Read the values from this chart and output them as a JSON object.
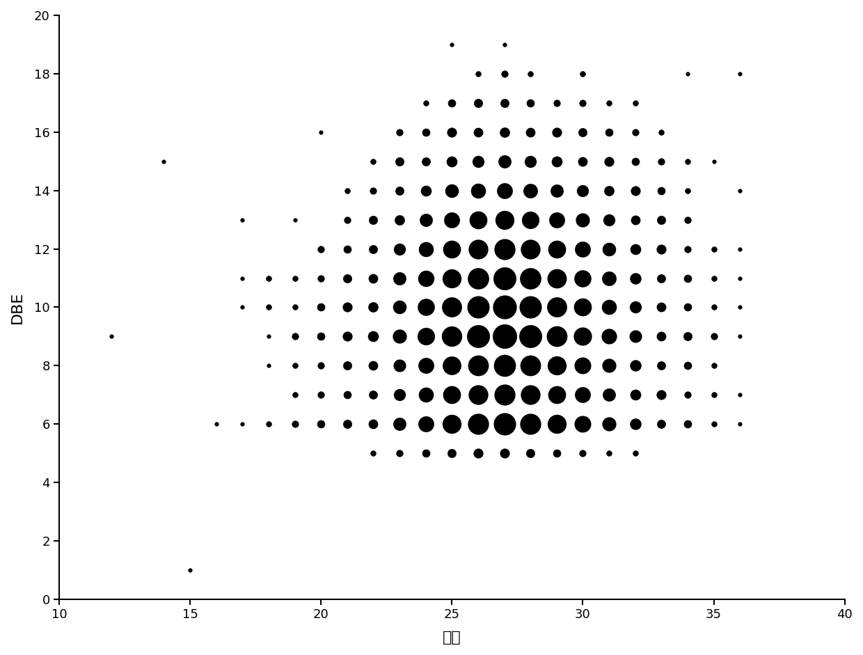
{
  "title": "",
  "xlabel": "碘数",
  "ylabel": "DBE",
  "xlim": [
    10,
    40
  ],
  "ylim": [
    0,
    20
  ],
  "xticks": [
    10,
    15,
    20,
    25,
    30,
    35,
    40
  ],
  "yticks": [
    0,
    2,
    4,
    6,
    8,
    10,
    12,
    14,
    16,
    18,
    20
  ],
  "background_color": "#ffffff",
  "points": [
    [
      12,
      9,
      1
    ],
    [
      14,
      15,
      1
    ],
    [
      15,
      1,
      1
    ],
    [
      16,
      6,
      1
    ],
    [
      17,
      6,
      1
    ],
    [
      17,
      10,
      1
    ],
    [
      17,
      11,
      1
    ],
    [
      17,
      13,
      1
    ],
    [
      18,
      6,
      2
    ],
    [
      18,
      8,
      1
    ],
    [
      18,
      9,
      1
    ],
    [
      18,
      10,
      2
    ],
    [
      18,
      11,
      2
    ],
    [
      19,
      6,
      3
    ],
    [
      19,
      7,
      2
    ],
    [
      19,
      8,
      2
    ],
    [
      19,
      9,
      3
    ],
    [
      19,
      10,
      2
    ],
    [
      19,
      11,
      2
    ],
    [
      19,
      13,
      1
    ],
    [
      20,
      6,
      4
    ],
    [
      20,
      7,
      3
    ],
    [
      20,
      8,
      3
    ],
    [
      20,
      9,
      4
    ],
    [
      20,
      10,
      4
    ],
    [
      20,
      11,
      3
    ],
    [
      20,
      12,
      3
    ],
    [
      20,
      16,
      1
    ],
    [
      21,
      6,
      5
    ],
    [
      21,
      7,
      4
    ],
    [
      21,
      8,
      5
    ],
    [
      21,
      9,
      6
    ],
    [
      21,
      10,
      6
    ],
    [
      21,
      11,
      5
    ],
    [
      21,
      12,
      4
    ],
    [
      21,
      13,
      3
    ],
    [
      21,
      14,
      2
    ],
    [
      22,
      5,
      2
    ],
    [
      22,
      6,
      8
    ],
    [
      22,
      7,
      7
    ],
    [
      22,
      8,
      8
    ],
    [
      22,
      9,
      10
    ],
    [
      22,
      10,
      9
    ],
    [
      22,
      11,
      8
    ],
    [
      22,
      12,
      7
    ],
    [
      22,
      13,
      5
    ],
    [
      22,
      14,
      3
    ],
    [
      22,
      15,
      2
    ],
    [
      23,
      5,
      3
    ],
    [
      23,
      6,
      14
    ],
    [
      23,
      7,
      12
    ],
    [
      23,
      8,
      13
    ],
    [
      23,
      9,
      16
    ],
    [
      23,
      10,
      15
    ],
    [
      23,
      11,
      14
    ],
    [
      23,
      12,
      12
    ],
    [
      23,
      13,
      9
    ],
    [
      23,
      14,
      7
    ],
    [
      23,
      15,
      5
    ],
    [
      23,
      16,
      3
    ],
    [
      24,
      5,
      4
    ],
    [
      24,
      6,
      20
    ],
    [
      24,
      7,
      18
    ],
    [
      24,
      8,
      20
    ],
    [
      24,
      9,
      24
    ],
    [
      24,
      10,
      23
    ],
    [
      24,
      11,
      21
    ],
    [
      24,
      12,
      18
    ],
    [
      24,
      13,
      14
    ],
    [
      24,
      14,
      10
    ],
    [
      24,
      15,
      7
    ],
    [
      24,
      16,
      4
    ],
    [
      24,
      17,
      2
    ],
    [
      25,
      5,
      5
    ],
    [
      25,
      6,
      28
    ],
    [
      25,
      7,
      25
    ],
    [
      25,
      8,
      27
    ],
    [
      25,
      9,
      32
    ],
    [
      25,
      10,
      31
    ],
    [
      25,
      11,
      28
    ],
    [
      25,
      12,
      25
    ],
    [
      25,
      13,
      20
    ],
    [
      25,
      14,
      15
    ],
    [
      25,
      15,
      10
    ],
    [
      25,
      16,
      6
    ],
    [
      25,
      17,
      4
    ],
    [
      25,
      19,
      1
    ],
    [
      26,
      5,
      6
    ],
    [
      26,
      6,
      34
    ],
    [
      26,
      7,
      30
    ],
    [
      26,
      8,
      33
    ],
    [
      26,
      9,
      40
    ],
    [
      26,
      10,
      38
    ],
    [
      26,
      11,
      35
    ],
    [
      26,
      12,
      30
    ],
    [
      26,
      13,
      25
    ],
    [
      26,
      14,
      18
    ],
    [
      26,
      15,
      12
    ],
    [
      26,
      16,
      8
    ],
    [
      26,
      17,
      5
    ],
    [
      26,
      18,
      2
    ],
    [
      27,
      5,
      6
    ],
    [
      27,
      6,
      38
    ],
    [
      27,
      7,
      34
    ],
    [
      27,
      8,
      37
    ],
    [
      27,
      9,
      45
    ],
    [
      27,
      10,
      43
    ],
    [
      27,
      11,
      40
    ],
    [
      27,
      12,
      34
    ],
    [
      27,
      13,
      28
    ],
    [
      27,
      14,
      20
    ],
    [
      27,
      15,
      14
    ],
    [
      27,
      16,
      9
    ],
    [
      27,
      17,
      5
    ],
    [
      27,
      18,
      3
    ],
    [
      27,
      19,
      1
    ],
    [
      28,
      5,
      5
    ],
    [
      28,
      6,
      34
    ],
    [
      28,
      7,
      30
    ],
    [
      28,
      8,
      33
    ],
    [
      28,
      9,
      40
    ],
    [
      28,
      10,
      38
    ],
    [
      28,
      11,
      35
    ],
    [
      28,
      12,
      30
    ],
    [
      28,
      13,
      24
    ],
    [
      28,
      14,
      17
    ],
    [
      28,
      15,
      12
    ],
    [
      28,
      16,
      8
    ],
    [
      28,
      17,
      4
    ],
    [
      28,
      18,
      2
    ],
    [
      29,
      5,
      4
    ],
    [
      29,
      6,
      28
    ],
    [
      29,
      7,
      25
    ],
    [
      29,
      8,
      28
    ],
    [
      29,
      9,
      33
    ],
    [
      29,
      10,
      31
    ],
    [
      29,
      11,
      29
    ],
    [
      29,
      12,
      25
    ],
    [
      29,
      13,
      20
    ],
    [
      29,
      14,
      14
    ],
    [
      29,
      15,
      10
    ],
    [
      29,
      16,
      6
    ],
    [
      29,
      17,
      3
    ],
    [
      30,
      5,
      3
    ],
    [
      30,
      6,
      22
    ],
    [
      30,
      7,
      20
    ],
    [
      30,
      8,
      22
    ],
    [
      30,
      9,
      26
    ],
    [
      30,
      10,
      25
    ],
    [
      30,
      11,
      23
    ],
    [
      30,
      12,
      20
    ],
    [
      30,
      13,
      16
    ],
    [
      30,
      14,
      12
    ],
    [
      30,
      15,
      8
    ],
    [
      30,
      16,
      5
    ],
    [
      30,
      17,
      3
    ],
    [
      30,
      18,
      2
    ],
    [
      31,
      5,
      2
    ],
    [
      31,
      6,
      16
    ],
    [
      31,
      7,
      14
    ],
    [
      31,
      8,
      16
    ],
    [
      31,
      9,
      19
    ],
    [
      31,
      10,
      18
    ],
    [
      31,
      11,
      17
    ],
    [
      31,
      12,
      15
    ],
    [
      31,
      13,
      12
    ],
    [
      31,
      14,
      9
    ],
    [
      31,
      15,
      6
    ],
    [
      31,
      16,
      4
    ],
    [
      31,
      17,
      2
    ],
    [
      32,
      5,
      2
    ],
    [
      32,
      6,
      11
    ],
    [
      32,
      7,
      10
    ],
    [
      32,
      8,
      11
    ],
    [
      32,
      9,
      13
    ],
    [
      32,
      10,
      12
    ],
    [
      32,
      11,
      11
    ],
    [
      32,
      12,
      10
    ],
    [
      32,
      13,
      8
    ],
    [
      32,
      14,
      6
    ],
    [
      32,
      15,
      4
    ],
    [
      32,
      16,
      3
    ],
    [
      32,
      17,
      2
    ],
    [
      33,
      6,
      7
    ],
    [
      33,
      7,
      6
    ],
    [
      33,
      8,
      7
    ],
    [
      33,
      9,
      8
    ],
    [
      33,
      10,
      8
    ],
    [
      33,
      11,
      7
    ],
    [
      33,
      12,
      6
    ],
    [
      33,
      13,
      5
    ],
    [
      33,
      14,
      4
    ],
    [
      33,
      15,
      3
    ],
    [
      33,
      16,
      2
    ],
    [
      34,
      6,
      4
    ],
    [
      34,
      7,
      3
    ],
    [
      34,
      8,
      4
    ],
    [
      34,
      9,
      5
    ],
    [
      34,
      10,
      4
    ],
    [
      34,
      11,
      4
    ],
    [
      34,
      12,
      3
    ],
    [
      34,
      13,
      3
    ],
    [
      34,
      14,
      2
    ],
    [
      34,
      15,
      2
    ],
    [
      34,
      18,
      1
    ],
    [
      35,
      6,
      2
    ],
    [
      35,
      7,
      2
    ],
    [
      35,
      8,
      2
    ],
    [
      35,
      9,
      3
    ],
    [
      35,
      10,
      2
    ],
    [
      35,
      11,
      2
    ],
    [
      35,
      12,
      2
    ],
    [
      35,
      15,
      1
    ],
    [
      36,
      6,
      1
    ],
    [
      36,
      7,
      1
    ],
    [
      36,
      9,
      1
    ],
    [
      36,
      10,
      1
    ],
    [
      36,
      11,
      1
    ],
    [
      36,
      12,
      1
    ],
    [
      36,
      14,
      1
    ],
    [
      36,
      18,
      1
    ]
  ]
}
